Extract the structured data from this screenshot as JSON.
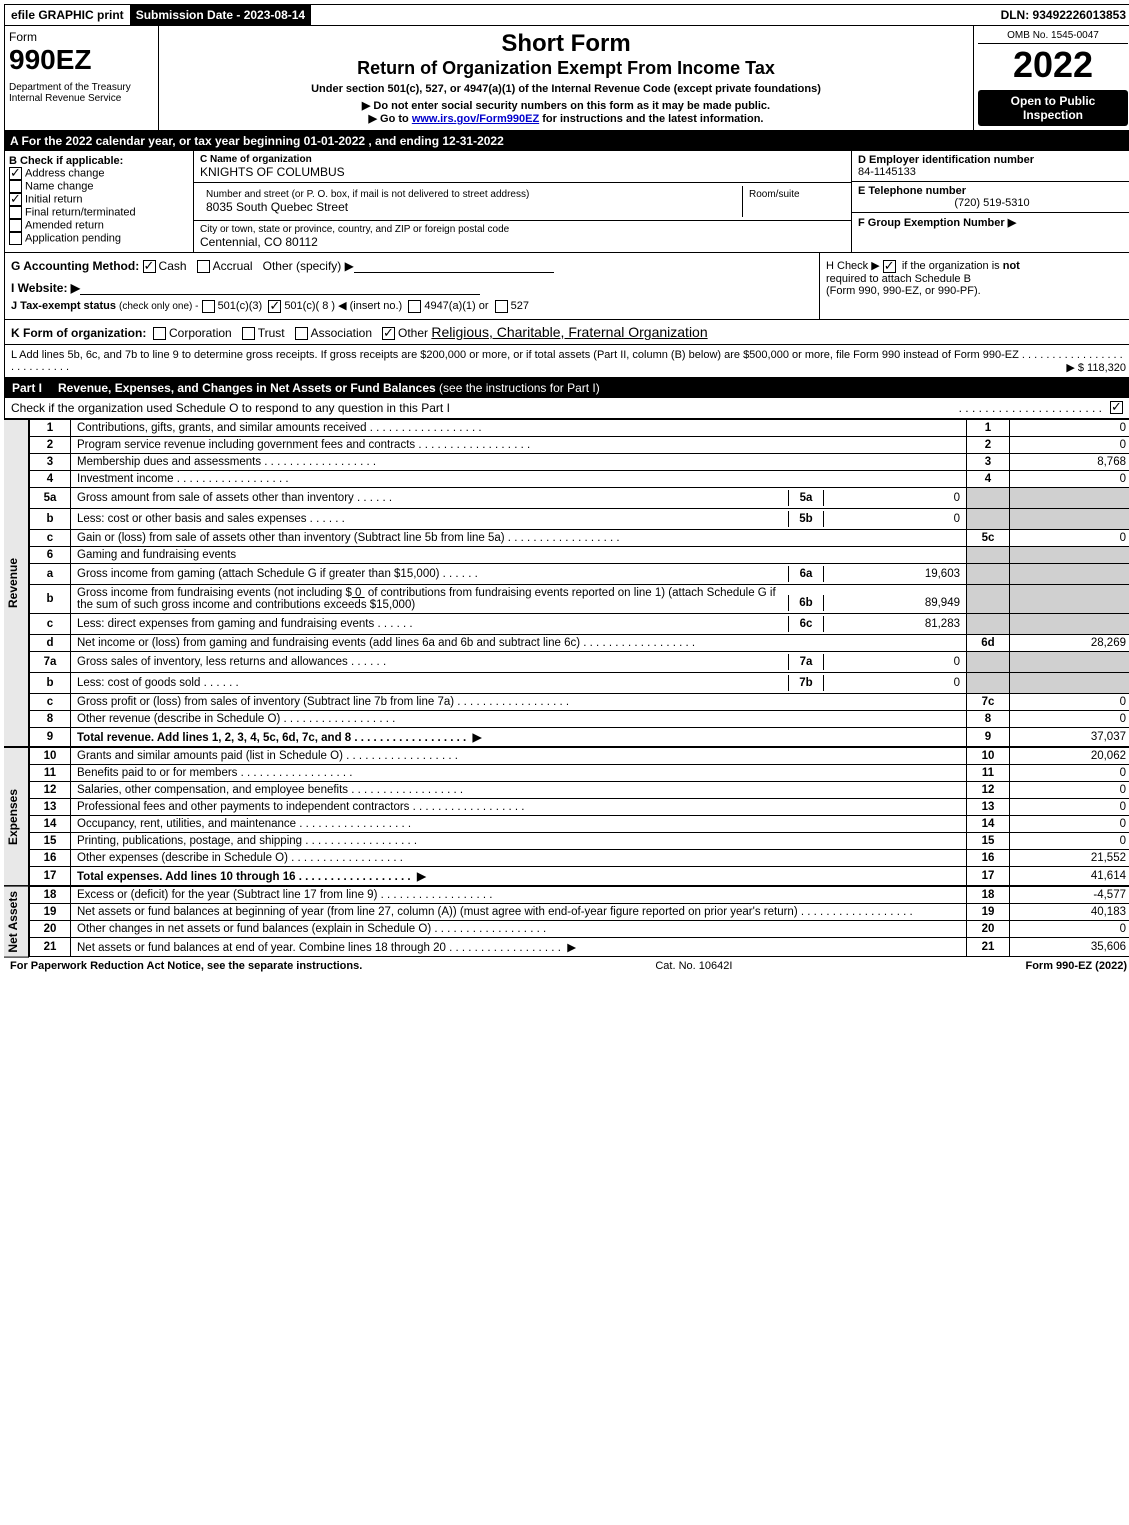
{
  "top": {
    "efile": "efile GRAPHIC print",
    "submission": "Submission Date - 2023-08-14",
    "dln": "DLN: 93492226013853"
  },
  "header": {
    "form_word": "Form",
    "form_num": "990EZ",
    "dept": "Department of the Treasury",
    "irs": "Internal Revenue Service",
    "short_form": "Short Form",
    "return_title": "Return of Organization Exempt From Income Tax",
    "subtitle": "Under section 501(c), 527, or 4947(a)(1) of the Internal Revenue Code (except private foundations)",
    "note1": "▶ Do not enter social security numbers on this form as it may be made public.",
    "note2_pre": "▶ Go to ",
    "note2_link": "www.irs.gov/Form990EZ",
    "note2_post": " for instructions and the latest information.",
    "omb": "OMB No. 1545-0047",
    "year": "2022",
    "open": "Open to Public Inspection"
  },
  "section_a": "A  For the 2022 calendar year, or tax year beginning 01-01-2022 , and ending 12-31-2022",
  "b": {
    "label": "B  Check if applicable:",
    "items": [
      "Address change",
      "Name change",
      "Initial return",
      "Final return/terminated",
      "Amended return",
      "Application pending"
    ]
  },
  "c": {
    "label": "C Name of organization",
    "name": "KNIGHTS OF COLUMBUS",
    "addr_label": "Number and street (or P. O. box, if mail is not delivered to street address)",
    "room_label": "Room/suite",
    "addr": "8035 South Quebec Street",
    "city_label": "City or town, state or province, country, and ZIP or foreign postal code",
    "city": "Centennial, CO  80112"
  },
  "d": {
    "label": "D Employer identification number",
    "value": "84-1145133"
  },
  "e": {
    "label": "E Telephone number",
    "value": "(720) 519-5310"
  },
  "f": {
    "label": "F Group Exemption Number   ▶"
  },
  "g": {
    "label": "G Accounting Method:",
    "cash": "Cash",
    "accrual": "Accrual",
    "other": "Other (specify) ▶"
  },
  "h": {
    "text1": "H  Check ▶",
    "text2": "if the organization is ",
    "not": "not",
    "text3": "required to attach Schedule B",
    "text4": "(Form 990, 990-EZ, or 990-PF)."
  },
  "i": {
    "label": "I Website: ▶"
  },
  "j": {
    "label": "J Tax-exempt status",
    "sub": "(check only one) -",
    "o1": "501(c)(3)",
    "o2": "501(c)( 8 ) ◀ (insert no.)",
    "o3": "4947(a)(1) or",
    "o4": "527"
  },
  "k": {
    "label": "K Form of organization:",
    "corp": "Corporation",
    "trust": "Trust",
    "assoc": "Association",
    "other": "Other",
    "other_val": "Religious, Charitable, Fraternal Organization"
  },
  "l": {
    "text": "L Add lines 5b, 6c, and 7b to line 9 to determine gross receipts. If gross receipts are $200,000 or more, or if total assets (Part II, column (B) below) are $500,000 or more, file Form 990 instead of Form 990-EZ",
    "amount": "▶ $ 118,320"
  },
  "part1": {
    "label": "Part I",
    "title": "Revenue, Expenses, and Changes in Net Assets or Fund Balances",
    "title_sub": "(see the instructions for Part I)",
    "check_note": "Check if the organization used Schedule O to respond to any question in this Part I"
  },
  "revenue_label": "Revenue",
  "expenses_label": "Expenses",
  "netassets_label": "Net Assets",
  "lines": {
    "1": {
      "desc": "Contributions, gifts, grants, and similar amounts received",
      "col": "1",
      "amt": "0"
    },
    "2": {
      "desc": "Program service revenue including government fees and contracts",
      "col": "2",
      "amt": "0"
    },
    "3": {
      "desc": "Membership dues and assessments",
      "col": "3",
      "amt": "8,768"
    },
    "4": {
      "desc": "Investment income",
      "col": "4",
      "amt": "0"
    },
    "5a": {
      "desc": "Gross amount from sale of assets other than inventory",
      "sub": "5a",
      "subamt": "0"
    },
    "5b": {
      "desc": "Less: cost or other basis and sales expenses",
      "sub": "5b",
      "subamt": "0"
    },
    "5c": {
      "desc": "Gain or (loss) from sale of assets other than inventory (Subtract line 5b from line 5a)",
      "col": "5c",
      "amt": "0"
    },
    "6": {
      "desc": "Gaming and fundraising events"
    },
    "6a": {
      "desc": "Gross income from gaming (attach Schedule G if greater than $15,000)",
      "sub": "6a",
      "subamt": "19,603"
    },
    "6b": {
      "desc_pre": "Gross income from fundraising events (not including $",
      "desc_val": "0",
      "desc_post": " of contributions from fundraising events reported on line 1) (attach Schedule G if the sum of such gross income and contributions exceeds $15,000)",
      "sub": "6b",
      "subamt": "89,949"
    },
    "6c": {
      "desc": "Less: direct expenses from gaming and fundraising events",
      "sub": "6c",
      "subamt": "81,283"
    },
    "6d": {
      "desc": "Net income or (loss) from gaming and fundraising events (add lines 6a and 6b and subtract line 6c)",
      "col": "6d",
      "amt": "28,269"
    },
    "7a": {
      "desc": "Gross sales of inventory, less returns and allowances",
      "sub": "7a",
      "subamt": "0"
    },
    "7b": {
      "desc": "Less: cost of goods sold",
      "sub": "7b",
      "subamt": "0"
    },
    "7c": {
      "desc": "Gross profit or (loss) from sales of inventory (Subtract line 7b from line 7a)",
      "col": "7c",
      "amt": "0"
    },
    "8": {
      "desc": "Other revenue (describe in Schedule O)",
      "col": "8",
      "amt": "0"
    },
    "9": {
      "desc": "Total revenue. Add lines 1, 2, 3, 4, 5c, 6d, 7c, and 8",
      "col": "9",
      "amt": "37,037",
      "arrow": true,
      "bold": true
    },
    "10": {
      "desc": "Grants and similar amounts paid (list in Schedule O)",
      "col": "10",
      "amt": "20,062"
    },
    "11": {
      "desc": "Benefits paid to or for members",
      "col": "11",
      "amt": "0"
    },
    "12": {
      "desc": "Salaries, other compensation, and employee benefits",
      "col": "12",
      "amt": "0"
    },
    "13": {
      "desc": "Professional fees and other payments to independent contractors",
      "col": "13",
      "amt": "0"
    },
    "14": {
      "desc": "Occupancy, rent, utilities, and maintenance",
      "col": "14",
      "amt": "0"
    },
    "15": {
      "desc": "Printing, publications, postage, and shipping",
      "col": "15",
      "amt": "0"
    },
    "16": {
      "desc": "Other expenses (describe in Schedule O)",
      "col": "16",
      "amt": "21,552"
    },
    "17": {
      "desc": "Total expenses. Add lines 10 through 16",
      "col": "17",
      "amt": "41,614",
      "arrow": true,
      "bold": true
    },
    "18": {
      "desc": "Excess or (deficit) for the year (Subtract line 17 from line 9)",
      "col": "18",
      "amt": "-4,577"
    },
    "19": {
      "desc": "Net assets or fund balances at beginning of year (from line 27, column (A)) (must agree with end-of-year figure reported on prior year's return)",
      "col": "19",
      "amt": "40,183"
    },
    "20": {
      "desc": "Other changes in net assets or fund balances (explain in Schedule O)",
      "col": "20",
      "amt": "0"
    },
    "21": {
      "desc": "Net assets or fund balances at end of year. Combine lines 18 through 20",
      "col": "21",
      "amt": "35,606",
      "arrow": true
    }
  },
  "footer": {
    "left": "For Paperwork Reduction Act Notice, see the separate instructions.",
    "center": "Cat. No. 10642I",
    "right": "Form 990-EZ (2022)"
  }
}
